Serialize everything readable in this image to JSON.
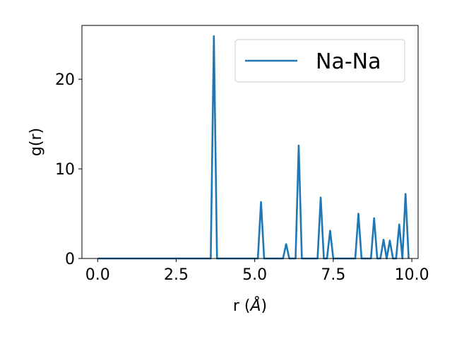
{
  "chart_data": {
    "type": "line",
    "title": "",
    "xlabel": "r (",
    "xlabel_unit": "Å",
    "xlabel_close": ")",
    "ylabel": "g(r)",
    "xlim": [
      -0.5,
      10.2
    ],
    "ylim": [
      0,
      26
    ],
    "xticks": [
      0.0,
      2.5,
      5.0,
      7.5,
      10.0
    ],
    "xtick_labels": [
      "0.0",
      "2.5",
      "5.0",
      "7.5",
      "10.0"
    ],
    "yticks": [
      0,
      10,
      20
    ],
    "ytick_labels": [
      "0",
      "10",
      "20"
    ],
    "grid": false,
    "legend_position": "top-right",
    "series": [
      {
        "name": "Na-Na",
        "color": "#1f77b4",
        "x": [
          0.0,
          3.6,
          3.7,
          3.8,
          5.1,
          5.2,
          5.3,
          5.9,
          6.0,
          6.1,
          6.3,
          6.4,
          6.5,
          7.0,
          7.1,
          7.2,
          7.3,
          7.4,
          7.5,
          8.2,
          8.3,
          8.4,
          8.7,
          8.8,
          8.9,
          9.0,
          9.1,
          9.2,
          9.3,
          9.4,
          9.5,
          9.6,
          9.7,
          9.8,
          9.9
        ],
        "y": [
          0,
          0,
          24.8,
          0,
          0,
          6.3,
          0,
          0,
          1.6,
          0,
          0,
          12.6,
          0,
          0,
          6.8,
          0,
          0,
          3.1,
          0,
          0,
          5.0,
          0,
          0,
          4.5,
          0,
          0,
          2.1,
          0,
          2.0,
          0,
          0,
          3.8,
          0,
          7.2,
          0
        ]
      }
    ]
  }
}
